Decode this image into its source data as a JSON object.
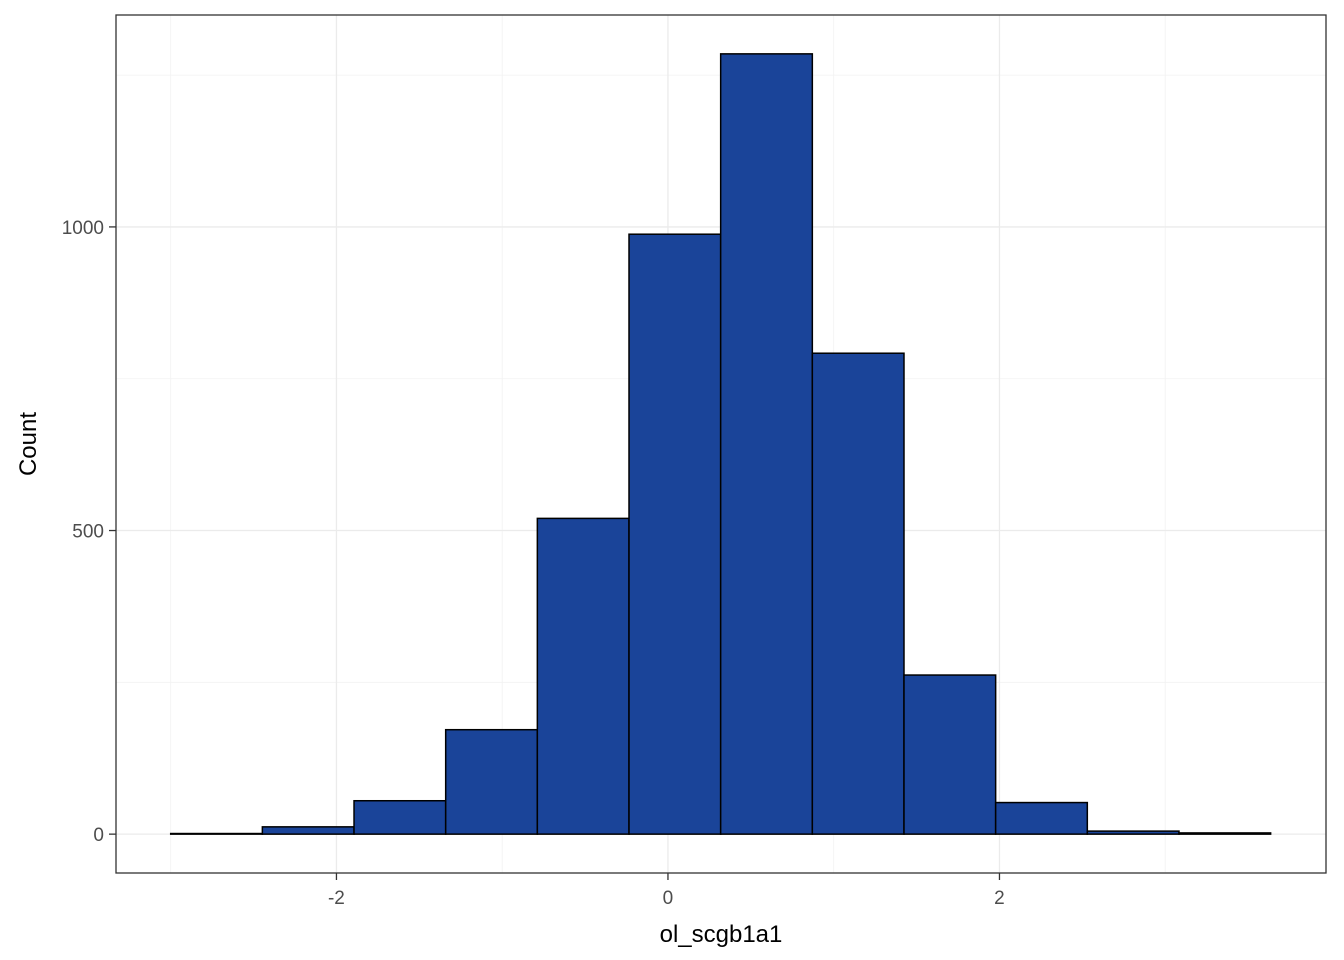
{
  "chart_data": {
    "type": "bar",
    "subtype": "histogram",
    "title": "",
    "xlabel": "ol_scgb1a1",
    "ylabel": "Count",
    "bin_edges": [
      -3.0,
      -2.447,
      -1.894,
      -1.341,
      -0.788,
      -0.235,
      0.318,
      0.871,
      1.424,
      1.977,
      2.53,
      3.083,
      3.636
    ],
    "counts": [
      1,
      12,
      55,
      172,
      520,
      988,
      1285,
      792,
      262,
      52,
      5,
      2
    ],
    "xlim": [
      -3.33,
      3.97
    ],
    "ylim": [
      -64,
      1349
    ],
    "x_ticks": [
      -2,
      0,
      2
    ],
    "x_tick_labels": [
      "-2",
      "0",
      "2"
    ],
    "y_ticks": [
      0,
      500,
      1000
    ],
    "y_tick_labels": [
      "0",
      "500",
      "1000"
    ],
    "bar_fill": "#1a4499",
    "bar_outline": "#000000",
    "grid": true,
    "legend": "none",
    "theme": "bw"
  }
}
